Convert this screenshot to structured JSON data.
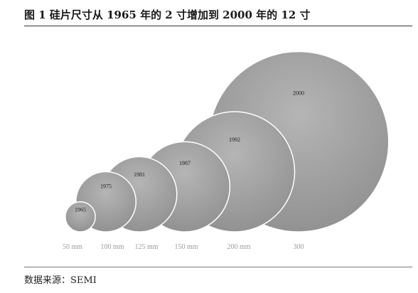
{
  "figure": {
    "title": "图 1 硅片尺寸从 1965 年的 2 寸增加到 2000 年的 12 寸",
    "source": "数据来源：SEMI"
  },
  "colors": {
    "circle_fill_light": "#b5b5b5",
    "circle_fill_dark": "#8f8f8f",
    "circle_stroke": "#ffffff",
    "text": "#222222",
    "size_label": "#9a9a9a"
  },
  "chart_data": {
    "type": "bubble",
    "title": "",
    "xlabel": "",
    "ylabel": "",
    "grid": false,
    "legend": "none",
    "points": [
      {
        "year_label": "1965",
        "size_label": "50 mm",
        "diameter_mm": 50
      },
      {
        "year_label": "1975",
        "size_label": "100 mm",
        "diameter_mm": 100
      },
      {
        "year_label": "1981",
        "size_label": "125 mm",
        "diameter_mm": 125
      },
      {
        "year_label": "1987",
        "size_label": "150 mm",
        "diameter_mm": 150
      },
      {
        "year_label": "1992",
        "size_label": "200 mm",
        "diameter_mm": 200
      },
      {
        "year_label": "2000",
        "size_label": "300",
        "diameter_mm": 300
      }
    ]
  }
}
